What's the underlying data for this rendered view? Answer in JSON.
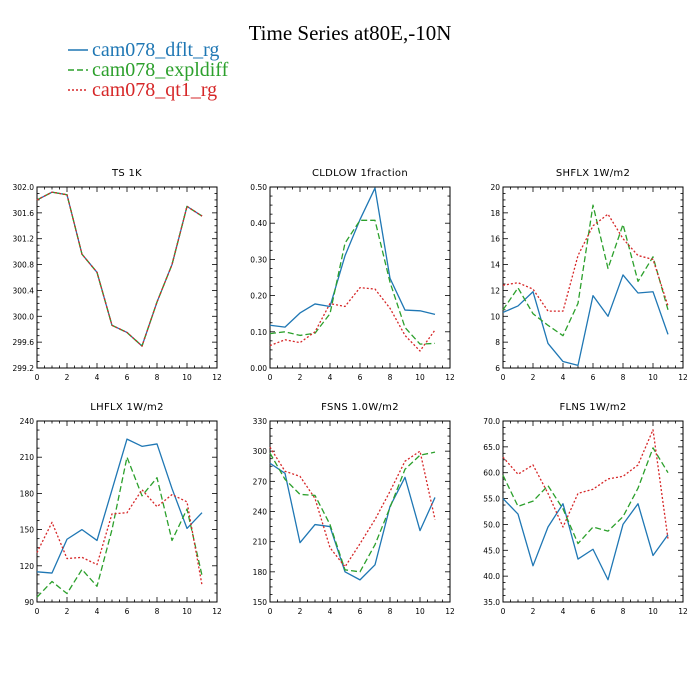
{
  "title": "Time Series at80E,-10N",
  "legend": [
    {
      "name": "cam078_dflt_rg",
      "color": "#1f77b4",
      "dash": ""
    },
    {
      "name": "cam078_expldiff",
      "color": "#2ca02c",
      "dash": "6,3"
    },
    {
      "name": "cam078_qt1_rg",
      "color": "#d62728",
      "dash": "2,2"
    }
  ],
  "chart_data": [
    {
      "type": "line",
      "title": "TS   1K",
      "xlim": [
        0,
        12
      ],
      "ylim": [
        299.2,
        302.0
      ],
      "xticks": [
        0,
        2,
        4,
        6,
        8,
        10,
        12
      ],
      "yticks": [
        "299.2",
        "299.6",
        "300.0",
        "300.4",
        "300.8",
        "301.2",
        "301.6",
        "302.0"
      ],
      "x": [
        0,
        1,
        2,
        3,
        4,
        5,
        6,
        7,
        8,
        9,
        10,
        11
      ],
      "series": [
        {
          "values": [
            301.8,
            301.92,
            301.88,
            300.96,
            300.68,
            299.86,
            299.75,
            299.54,
            300.22,
            300.8,
            301.7,
            301.55
          ]
        },
        {
          "values": [
            301.8,
            301.92,
            301.88,
            300.96,
            300.68,
            299.86,
            299.75,
            299.54,
            300.22,
            300.8,
            301.7,
            301.55
          ]
        },
        {
          "values": [
            301.8,
            301.92,
            301.88,
            300.96,
            300.68,
            299.86,
            299.75,
            299.54,
            300.22,
            300.8,
            301.7,
            301.55
          ]
        }
      ]
    },
    {
      "type": "line",
      "title": "CLDLOW   1fraction",
      "xlim": [
        0,
        12
      ],
      "ylim": [
        0.0,
        0.5
      ],
      "xticks": [
        0,
        2,
        4,
        6,
        8,
        10,
        12
      ],
      "yticks": [
        "0.00",
        "0.10",
        "0.20",
        "0.30",
        "0.40",
        "0.50"
      ],
      "x": [
        0,
        1,
        2,
        3,
        4,
        5,
        6,
        7,
        8,
        9,
        10,
        11
      ],
      "series": [
        {
          "values": [
            0.118,
            0.113,
            0.152,
            0.177,
            0.17,
            0.31,
            0.41,
            0.497,
            0.248,
            0.16,
            0.158,
            0.148
          ]
        },
        {
          "values": [
            0.095,
            0.1,
            0.09,
            0.096,
            0.15,
            0.345,
            0.408,
            0.408,
            0.237,
            0.112,
            0.066,
            0.068
          ]
        },
        {
          "values": [
            0.062,
            0.078,
            0.07,
            0.1,
            0.178,
            0.17,
            0.222,
            0.218,
            0.165,
            0.09,
            0.047,
            0.105
          ]
        }
      ]
    },
    {
      "type": "line",
      "title": "SHFLX   1W/m2",
      "xlim": [
        0,
        12
      ],
      "ylim": [
        6,
        20
      ],
      "xticks": [
        0,
        2,
        4,
        6,
        8,
        10,
        12
      ],
      "yticks": [
        "6",
        "8",
        "10",
        "12",
        "14",
        "16",
        "18",
        "20"
      ],
      "x": [
        0,
        1,
        2,
        3,
        4,
        5,
        6,
        7,
        8,
        9,
        10,
        11
      ],
      "series": [
        {
          "values": [
            10.3,
            10.8,
            11.9,
            7.9,
            6.5,
            6.2,
            11.6,
            10.0,
            13.2,
            11.8,
            11.9,
            8.6
          ]
        },
        {
          "values": [
            10.5,
            12.2,
            10.2,
            9.3,
            8.5,
            11.0,
            18.6,
            13.7,
            17.1,
            12.7,
            14.6,
            10.5
          ]
        },
        {
          "values": [
            12.4,
            12.6,
            12.1,
            10.4,
            10.4,
            14.7,
            17.0,
            17.9,
            16.0,
            14.7,
            14.4,
            10.8
          ]
        }
      ]
    },
    {
      "type": "line",
      "title": "LHFLX   1W/m2",
      "xlim": [
        0,
        12
      ],
      "ylim": [
        90,
        240
      ],
      "xticks": [
        0,
        2,
        4,
        6,
        8,
        10,
        12
      ],
      "yticks": [
        "90",
        "120",
        "150",
        "180",
        "210",
        "240"
      ],
      "x": [
        0,
        1,
        2,
        3,
        4,
        5,
        6,
        7,
        8,
        9,
        10,
        11
      ],
      "series": [
        {
          "values": [
            115,
            114,
            142,
            150,
            141,
            183,
            225,
            219,
            221,
            184,
            151,
            164
          ]
        },
        {
          "values": [
            94,
            107,
            97,
            117,
            103,
            150,
            210,
            178,
            193,
            141,
            167,
            112
          ]
        },
        {
          "values": [
            131,
            156,
            126,
            127,
            121,
            163,
            164,
            183,
            169,
            179,
            173,
            104
          ]
        }
      ]
    },
    {
      "type": "line",
      "title": "FSNS   1.0W/m2",
      "xlim": [
        0,
        12
      ],
      "ylim": [
        150,
        330
      ],
      "xticks": [
        0,
        2,
        4,
        6,
        8,
        10,
        12
      ],
      "yticks": [
        "150",
        "180",
        "210",
        "240",
        "270",
        "300",
        "330"
      ],
      "x": [
        0,
        1,
        2,
        3,
        4,
        5,
        6,
        7,
        8,
        9,
        10,
        11
      ],
      "series": [
        {
          "values": [
            288,
            278,
            209,
            227,
            225,
            180,
            172,
            187,
            245,
            274,
            221,
            254
          ]
        },
        {
          "values": [
            298,
            272,
            257,
            256,
            227,
            182,
            180,
            207,
            244,
            282,
            296,
            299
          ]
        },
        {
          "values": [
            304,
            280,
            275,
            253,
            204,
            185,
            208,
            232,
            260,
            290,
            300,
            232
          ]
        }
      ]
    },
    {
      "type": "line",
      "title": "FLNS   1W/m2",
      "xlim": [
        0,
        12
      ],
      "ylim": [
        35.0,
        70.0
      ],
      "xticks": [
        0,
        2,
        4,
        6,
        8,
        10,
        12
      ],
      "yticks": [
        "35.0",
        "40.0",
        "45.0",
        "50.0",
        "55.0",
        "60.0",
        "65.0",
        "70.0"
      ],
      "x": [
        0,
        1,
        2,
        3,
        4,
        5,
        6,
        7,
        8,
        9,
        10,
        11
      ],
      "series": [
        {
          "values": [
            55.0,
            52.0,
            42.0,
            49.5,
            54.0,
            43.3,
            45.2,
            39.3,
            50.0,
            54.0,
            44.0,
            48.0
          ]
        },
        {
          "values": [
            59.5,
            53.5,
            54.5,
            57.5,
            53.0,
            46.3,
            49.5,
            48.7,
            51.5,
            57.0,
            64.8,
            60.0
          ]
        },
        {
          "values": [
            63.0,
            59.7,
            61.5,
            56.0,
            49.5,
            56.0,
            56.8,
            58.8,
            59.3,
            61.5,
            68.3,
            47.2
          ]
        }
      ]
    }
  ]
}
